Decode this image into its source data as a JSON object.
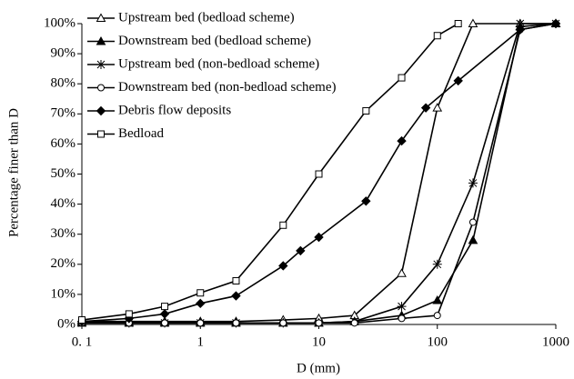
{
  "chart_data": {
    "type": "line",
    "xlabel": "D (mm)",
    "ylabel": "Percentage finer than D",
    "xscale": "log",
    "xlim": [
      0.1,
      1000
    ],
    "xticks": [
      {
        "value": 0.1,
        "label": "0. 1"
      },
      1,
      10,
      100,
      1000
    ],
    "ylim": [
      0,
      100
    ],
    "yticks": [
      {
        "value": 0,
        "label": "0%"
      },
      {
        "value": 10,
        "label": "10%"
      },
      {
        "value": 20,
        "label": "20%"
      },
      {
        "value": 30,
        "label": "30%"
      },
      {
        "value": 40,
        "label": "40%"
      },
      {
        "value": 50,
        "label": "50%"
      },
      {
        "value": 60,
        "label": "60%"
      },
      {
        "value": 70,
        "label": "70%"
      },
      {
        "value": 80,
        "label": "80%"
      },
      {
        "value": 90,
        "label": "90%"
      },
      {
        "value": 100,
        "label": "100%"
      }
    ],
    "grid": false,
    "legend": "top-left",
    "series": [
      {
        "name": "Upstream bed (bedload scheme)",
        "color": "#000000",
        "marker": "triangle-open",
        "x": [
          0.1,
          0.25,
          0.5,
          1,
          2,
          5,
          10,
          20,
          50,
          100,
          200,
          500,
          1000
        ],
        "values": [
          1,
          1,
          1,
          1,
          1,
          1.5,
          2,
          3,
          17,
          72,
          100,
          100,
          100
        ]
      },
      {
        "name": "Downstream bed (bedload scheme)",
        "color": "#000000",
        "marker": "triangle-filled",
        "x": [
          0.1,
          0.25,
          0.5,
          1,
          2,
          5,
          10,
          20,
          50,
          100,
          200,
          500,
          1000
        ],
        "values": [
          0.5,
          0.5,
          0.5,
          0.5,
          0.5,
          0.5,
          0.5,
          1,
          3,
          8,
          28,
          99,
          100
        ]
      },
      {
        "name": "Upstream bed (non-bedload scheme)",
        "color": "#000000",
        "marker": "star",
        "x": [
          0.1,
          0.25,
          0.5,
          1,
          2,
          5,
          10,
          20,
          50,
          100,
          200,
          500,
          1000
        ],
        "values": [
          0.5,
          0.5,
          0.5,
          0.5,
          0.5,
          0.5,
          0.5,
          1,
          6,
          20,
          47,
          100,
          100
        ]
      },
      {
        "name": "Downstream bed (non-bedload scheme)",
        "color": "#000000",
        "marker": "circle-open",
        "x": [
          0.1,
          0.25,
          0.5,
          1,
          2,
          5,
          10,
          20,
          50,
          100,
          200,
          500,
          1000
        ],
        "values": [
          0.5,
          0.5,
          0.5,
          0.5,
          0.5,
          0.5,
          0.5,
          0.5,
          2,
          3,
          34,
          98,
          100
        ]
      },
      {
        "name": "Debris flow deposits",
        "color": "#000000",
        "marker": "diamond-filled",
        "x": [
          0.1,
          0.25,
          0.5,
          1,
          2,
          5,
          7,
          10,
          25,
          50,
          80,
          150,
          500,
          1000
        ],
        "values": [
          1,
          2,
          3.5,
          7,
          9.5,
          19.5,
          24.5,
          29,
          41,
          61,
          72,
          81,
          98,
          100
        ]
      },
      {
        "name": "Bedload",
        "color": "#000000",
        "marker": "square-open",
        "x": [
          0.1,
          0.25,
          0.5,
          1,
          2,
          5,
          10,
          25,
          50,
          100,
          150
        ],
        "values": [
          1.5,
          3.5,
          6,
          10.5,
          14.5,
          33,
          50,
          71,
          82,
          96,
          100
        ]
      }
    ]
  }
}
